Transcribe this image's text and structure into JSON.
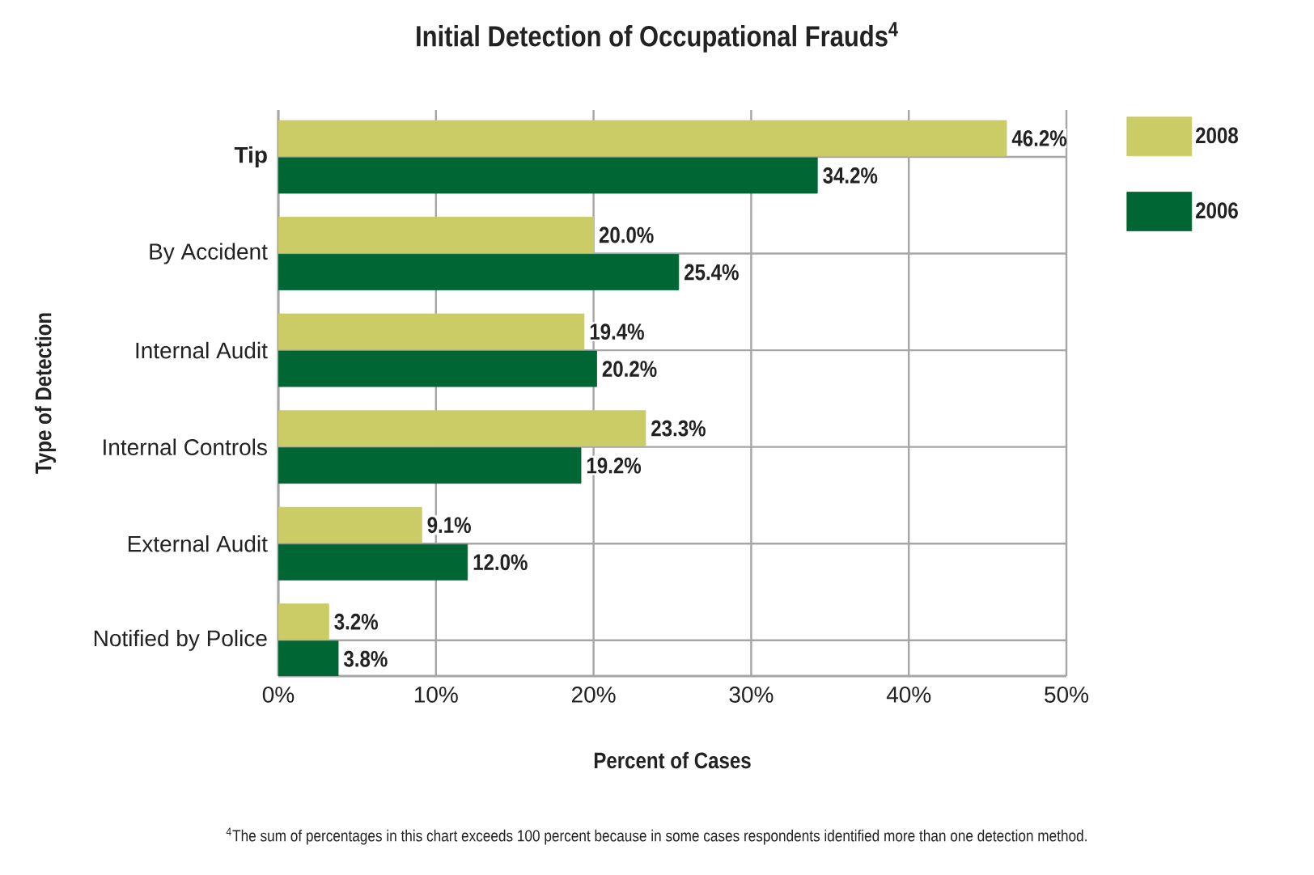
{
  "chart_data": {
    "type": "bar",
    "orientation": "horizontal",
    "title": "Initial Detection of Occupational Frauds$^{4}$",
    "xlabel": "Percent of Cases",
    "ylabel": "Type of Detection",
    "categories": [
      "**Tip**",
      "By Accident",
      "Internal Audit",
      "Internal Controls",
      "External Audit",
      "Notified by Police"
    ],
    "series": [
      {
        "name": "2008",
        "color": "#cccc66",
        "values": [
          46.2,
          20.0,
          19.4,
          23.3,
          9.1,
          3.2
        ],
        "value_labels": [
          "46.2%",
          "20.0%",
          "19.4%",
          "23.3%",
          "9.1%",
          "3.2%"
        ]
      },
      {
        "name": "2006",
        "color": "#006633",
        "values": [
          34.2,
          25.4,
          20.2,
          19.2,
          12.0,
          3.8
        ],
        "value_labels": [
          "34.2%",
          "25.4%",
          "20.2%",
          "19.2%",
          "12.0%",
          "3.8%"
        ]
      }
    ],
    "xlim": [
      0,
      50
    ],
    "xticks": [
      {
        "value": 0,
        "label": "0%"
      },
      {
        "value": 10,
        "label": "10%"
      },
      {
        "value": 20,
        "label": "20%"
      },
      {
        "value": 30,
        "label": "30%"
      },
      {
        "value": 40,
        "label": "40%"
      },
      {
        "value": 50,
        "label": "50%"
      }
    ],
    "grid": true,
    "legend": "top right",
    "annotations": [
      "$^{4}$The sum of percentages in this chart exceeds 100 percent because in some cases respondents identified more than one detection method."
    ]
  }
}
